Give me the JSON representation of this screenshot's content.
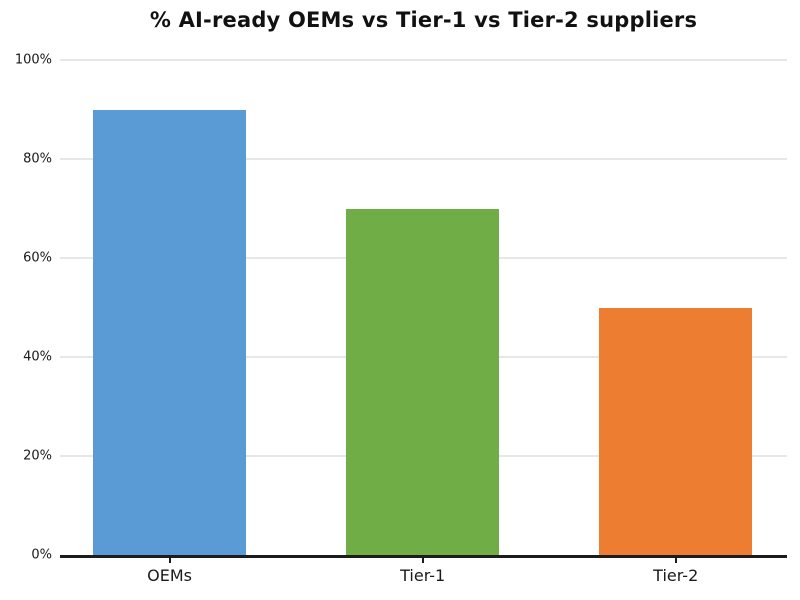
{
  "chart_data": {
    "type": "bar",
    "title": "% AI-ready OEMs vs Tier-1 vs Tier-2 suppliers",
    "categories": [
      "OEMs",
      "Tier-1",
      "Tier-2"
    ],
    "values": [
      90,
      70,
      50
    ],
    "series": [
      {
        "name": "% AI-ready",
        "values": [
          90,
          70,
          50
        ]
      }
    ],
    "bar_colors": [
      "#5B9BD5",
      "#70AD47",
      "#ED7D31"
    ],
    "xlabel": "",
    "ylabel": "",
    "ylim": [
      0,
      100
    ],
    "yticks": [
      {
        "value": 0,
        "label": "0%"
      },
      {
        "value": 20,
        "label": "20%"
      },
      {
        "value": 40,
        "label": "40%"
      },
      {
        "value": 60,
        "label": "60%"
      },
      {
        "value": 80,
        "label": "80%"
      },
      {
        "value": 100,
        "label": "100%"
      }
    ],
    "grid": "horizontal",
    "legend_position": "none"
  },
  "colors": {
    "background": "#ffffff",
    "title_color": "#111111",
    "axis_line_color": "#1c1c1c",
    "gridline_color": "#e7e7e7",
    "tick_label_color": "#1a1a1a"
  }
}
